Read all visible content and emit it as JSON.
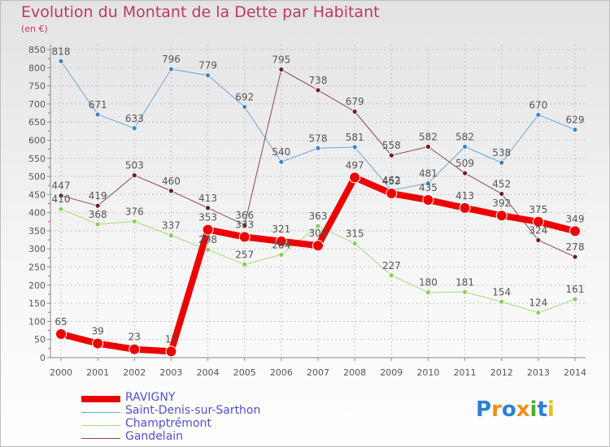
{
  "header": {
    "title": "Evolution du Montant de la Dette par Habitant",
    "subtitle": "(en €)"
  },
  "colors": {
    "title": "#c0366a",
    "axis": "#777777",
    "grid": "#c0c0c0",
    "legend_text": "#5050cc"
  },
  "chart_data": {
    "type": "line",
    "x": [
      "2000",
      "2001",
      "2002",
      "2003",
      "2004",
      "2005",
      "2006",
      "2007",
      "2008",
      "2009",
      "2010",
      "2011",
      "2012",
      "2013",
      "2014"
    ],
    "ylim": [
      0,
      850
    ],
    "yticks": [
      0,
      50,
      100,
      150,
      200,
      250,
      300,
      350,
      400,
      450,
      500,
      550,
      600,
      650,
      700,
      750,
      800,
      850
    ],
    "grid": true,
    "legend_position": "bottom-left",
    "series": [
      {
        "name": "Saint-Denis-sur-Sarthon",
        "color": "#6fa6d6",
        "marker": "#3d85c6",
        "width": 1,
        "values": [
          818,
          671,
          633,
          796,
          779,
          692,
          540,
          578,
          581,
          462,
          481,
          582,
          538,
          670,
          629
        ]
      },
      {
        "name": "Champtrémont",
        "color": "#a3dc7c",
        "marker": "#8ccc5c",
        "width": 1,
        "values": [
          410,
          368,
          376,
          337,
          298,
          257,
          284,
          363,
          315,
          227,
          180,
          181,
          154,
          124,
          161
        ]
      },
      {
        "name": "Gandelain",
        "color": "#8a4a4a",
        "marker": "#6b1f1f",
        "width": 1,
        "values": [
          447,
          419,
          503,
          460,
          413,
          366,
          795,
          738,
          679,
          558,
          582,
          509,
          452,
          324,
          278
        ]
      },
      {
        "name": "RAVIGNY",
        "color": "#ee0000",
        "marker": "#ee0000",
        "width": 8,
        "values": [
          65,
          39,
          23,
          17,
          353,
          333,
          321,
          309,
          497,
          453,
          435,
          413,
          392,
          375,
          349
        ]
      }
    ]
  },
  "legend": [
    {
      "label": "RAVIGNY",
      "color": "#ee0000",
      "thickness": 8
    },
    {
      "label": "Saint-Denis-sur-Sarthon",
      "color": "#6fa6d6",
      "thickness": 1
    },
    {
      "label": "Champtrémont",
      "color": "#a3dc7c",
      "thickness": 1
    },
    {
      "label": "Gandelain",
      "color": "#8a4a4a",
      "thickness": 1
    }
  ],
  "logo": {
    "letters": [
      "P",
      "r",
      "o",
      "x",
      "i",
      "t",
      "i"
    ],
    "colors": [
      "#2b7fd4",
      "#f08c1e",
      "#2b7fd4",
      "#f08c1e",
      "#4cae2a",
      "#2b7fd4",
      "#e8c020"
    ]
  }
}
